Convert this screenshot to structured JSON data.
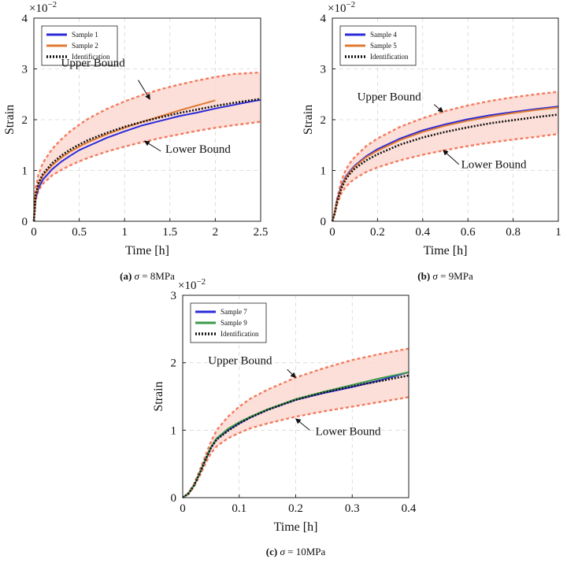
{
  "colors": {
    "band": "#fbd9d2",
    "bound": "#f47c5f",
    "identification": "#111111",
    "sample_blue": "#2b2bd9",
    "sample_orange": "#e07b33",
    "sample_green": "#3a9a4a"
  },
  "chart_data": [
    {
      "type": "line",
      "caption": {
        "tag": "(a)",
        "sym": "σ",
        "rest": " = 8MPa"
      },
      "multiplier": "×10",
      "exponent": "−2",
      "xlabel": "Time [h]",
      "ylabel": "Strain",
      "xlim": [
        0,
        2.5
      ],
      "ylim": [
        0,
        4
      ],
      "xticks": [
        0,
        0.5,
        1,
        1.5,
        2,
        2.5
      ],
      "xtick_labels": [
        "0",
        "0.5",
        "1",
        "1.5",
        "2",
        "2.5"
      ],
      "yticks": [
        0,
        1,
        2,
        3,
        4
      ],
      "ytick_labels": [
        "0",
        "1",
        "2",
        "3",
        "4"
      ],
      "grid": true,
      "legend": "top-left",
      "annotations": [
        {
          "text": "Upper Bound",
          "at": [
            0.3,
            3.05
          ],
          "arrow_to": [
            1.28,
            2.4
          ],
          "arrow_from": [
            1.15,
            2.78
          ]
        },
        {
          "text": "Lower Bound",
          "at": [
            1.45,
            1.35
          ],
          "arrow_to": [
            1.22,
            1.58
          ],
          "arrow_from": [
            1.4,
            1.38
          ]
        }
      ],
      "series": [
        {
          "name": "Sample 1",
          "color": "sample_blue",
          "style": "solid",
          "x": [
            0,
            0.02,
            0.05,
            0.1,
            0.2,
            0.3,
            0.4,
            0.5,
            0.6,
            0.8,
            1.0,
            1.2,
            1.4,
            1.6,
            1.8,
            2.0,
            2.2,
            2.4,
            2.5
          ],
          "y": [
            0,
            0.45,
            0.65,
            0.82,
            1.02,
            1.17,
            1.29,
            1.4,
            1.48,
            1.64,
            1.77,
            1.89,
            1.98,
            2.07,
            2.14,
            2.22,
            2.29,
            2.36,
            2.39
          ]
        },
        {
          "name": "Sample 2",
          "color": "sample_orange",
          "style": "solid",
          "x": [
            0,
            0.02,
            0.05,
            0.1,
            0.2,
            0.3,
            0.4,
            0.5,
            0.6,
            0.8,
            1.0,
            1.2,
            1.4,
            1.6,
            1.8,
            2.0
          ],
          "y": [
            0,
            0.5,
            0.72,
            0.9,
            1.1,
            1.25,
            1.37,
            1.47,
            1.56,
            1.71,
            1.84,
            1.96,
            2.07,
            2.18,
            2.28,
            2.38
          ]
        },
        {
          "name": "Identification",
          "color": "identification",
          "style": "dotted",
          "x": [
            0,
            0.02,
            0.05,
            0.1,
            0.2,
            0.3,
            0.4,
            0.5,
            0.6,
            0.8,
            1.0,
            1.2,
            1.4,
            1.6,
            1.8,
            2.0,
            2.2,
            2.5
          ],
          "y": [
            0,
            0.52,
            0.75,
            0.93,
            1.14,
            1.29,
            1.41,
            1.51,
            1.6,
            1.74,
            1.86,
            1.96,
            2.05,
            2.13,
            2.2,
            2.27,
            2.33,
            2.41
          ]
        },
        {
          "name": "Upper Bound",
          "color": "bound",
          "style": "bound",
          "x": [
            0,
            0.02,
            0.05,
            0.1,
            0.2,
            0.3,
            0.4,
            0.5,
            0.6,
            0.8,
            1.0,
            1.2,
            1.4,
            1.6,
            1.8,
            2.0,
            2.2,
            2.5
          ],
          "y": [
            0,
            0.65,
            0.92,
            1.15,
            1.42,
            1.61,
            1.77,
            1.9,
            2.02,
            2.21,
            2.36,
            2.49,
            2.6,
            2.69,
            2.77,
            2.84,
            2.9,
            2.93
          ]
        },
        {
          "name": "Lower Bound",
          "color": "bound",
          "style": "bound",
          "x": [
            0,
            0.02,
            0.05,
            0.1,
            0.2,
            0.3,
            0.4,
            0.5,
            0.6,
            0.8,
            1.0,
            1.2,
            1.4,
            1.6,
            1.8,
            2.0,
            2.2,
            2.5
          ],
          "y": [
            0,
            0.42,
            0.6,
            0.74,
            0.9,
            1.01,
            1.1,
            1.18,
            1.25,
            1.37,
            1.47,
            1.56,
            1.64,
            1.71,
            1.78,
            1.84,
            1.89,
            1.96
          ]
        }
      ]
    },
    {
      "type": "line",
      "caption": {
        "tag": "(b)",
        "sym": "σ",
        "rest": " = 9MPa"
      },
      "multiplier": "×10",
      "exponent": "−2",
      "xlabel": "Time [h]",
      "ylabel": "Strain",
      "xlim": [
        0,
        1
      ],
      "ylim": [
        0,
        4
      ],
      "xticks": [
        0,
        0.2,
        0.4,
        0.6,
        0.8,
        1
      ],
      "xtick_labels": [
        "0",
        "0.2",
        "0.4",
        "0.6",
        "0.8",
        "1"
      ],
      "yticks": [
        0,
        1,
        2,
        3,
        4
      ],
      "ytick_labels": [
        "0",
        "1",
        "2",
        "3",
        "4"
      ],
      "grid": true,
      "legend": "top-left",
      "annotations": [
        {
          "text": "Upper Bound",
          "at": [
            0.11,
            2.38
          ],
          "arrow_to": [
            0.49,
            2.15
          ],
          "arrow_from": [
            0.45,
            2.3
          ]
        },
        {
          "text": "Lower Bound",
          "at": [
            0.57,
            1.05
          ],
          "arrow_to": [
            0.49,
            1.4
          ],
          "arrow_from": [
            0.56,
            1.12
          ]
        }
      ],
      "series": [
        {
          "name": "Sample 4",
          "color": "sample_blue",
          "style": "solid",
          "x": [
            0,
            0.01,
            0.02,
            0.04,
            0.06,
            0.08,
            0.1,
            0.15,
            0.2,
            0.3,
            0.4,
            0.5,
            0.6,
            0.7,
            0.8,
            0.9,
            1.0
          ],
          "y": [
            0,
            0.15,
            0.4,
            0.7,
            0.88,
            1.0,
            1.1,
            1.28,
            1.42,
            1.63,
            1.79,
            1.91,
            2.01,
            2.09,
            2.15,
            2.21,
            2.26
          ]
        },
        {
          "name": "Sample 5",
          "color": "sample_orange",
          "style": "solid",
          "x": [
            0,
            0.01,
            0.02,
            0.04,
            0.06,
            0.08,
            0.1,
            0.15,
            0.2,
            0.3,
            0.4,
            0.5,
            0.6,
            0.7,
            0.8,
            0.9,
            1.0
          ],
          "y": [
            0,
            0.15,
            0.38,
            0.68,
            0.86,
            0.98,
            1.08,
            1.26,
            1.39,
            1.6,
            1.76,
            1.88,
            1.98,
            2.06,
            2.13,
            2.19,
            2.24
          ]
        },
        {
          "name": "Identification",
          "color": "identification",
          "style": "dotted",
          "x": [
            0,
            0.01,
            0.02,
            0.04,
            0.06,
            0.08,
            0.1,
            0.15,
            0.2,
            0.3,
            0.4,
            0.5,
            0.6,
            0.7,
            0.8,
            0.9,
            1.0
          ],
          "y": [
            0,
            0.15,
            0.36,
            0.65,
            0.83,
            0.95,
            1.04,
            1.2,
            1.32,
            1.51,
            1.65,
            1.76,
            1.85,
            1.93,
            1.99,
            2.05,
            2.1
          ]
        },
        {
          "name": "Upper Bound",
          "color": "bound",
          "style": "bound",
          "x": [
            0,
            0.01,
            0.02,
            0.04,
            0.06,
            0.08,
            0.1,
            0.15,
            0.2,
            0.3,
            0.4,
            0.5,
            0.6,
            0.7,
            0.8,
            0.9,
            1.0
          ],
          "y": [
            0,
            0.16,
            0.42,
            0.8,
            1.02,
            1.16,
            1.27,
            1.48,
            1.63,
            1.86,
            2.03,
            2.17,
            2.28,
            2.37,
            2.44,
            2.5,
            2.55
          ]
        },
        {
          "name": "Lower Bound",
          "color": "bound",
          "style": "bound",
          "x": [
            0,
            0.01,
            0.02,
            0.04,
            0.06,
            0.08,
            0.1,
            0.15,
            0.2,
            0.3,
            0.4,
            0.5,
            0.6,
            0.7,
            0.8,
            0.9,
            1.0
          ],
          "y": [
            0,
            0.14,
            0.32,
            0.55,
            0.68,
            0.77,
            0.84,
            0.97,
            1.06,
            1.2,
            1.31,
            1.4,
            1.48,
            1.55,
            1.61,
            1.66,
            1.72
          ]
        }
      ]
    },
    {
      "type": "line",
      "caption": {
        "tag": "(c)",
        "sym": "σ",
        "rest": " = 10MPa"
      },
      "multiplier": "×10",
      "exponent": "−2",
      "xlabel": "Time [h]",
      "ylabel": "Strain",
      "xlim": [
        0,
        0.4
      ],
      "ylim": [
        0,
        3
      ],
      "xticks": [
        0,
        0.1,
        0.2,
        0.3,
        0.4
      ],
      "xtick_labels": [
        "0",
        "0.1",
        "0.2",
        "0.3",
        "0.4"
      ],
      "yticks": [
        0,
        1,
        2,
        3
      ],
      "ytick_labels": [
        "0",
        "1",
        "2",
        "3"
      ],
      "grid": true,
      "legend": "top-left",
      "annotations": [
        {
          "text": "Upper Bound",
          "at": [
            0.045,
            1.98
          ],
          "arrow_to": [
            0.2,
            1.78
          ],
          "arrow_from": [
            0.185,
            1.9
          ]
        },
        {
          "text": "Lower Bound",
          "at": [
            0.235,
            0.93
          ],
          "arrow_to": [
            0.2,
            1.17
          ],
          "arrow_from": [
            0.225,
            1.0
          ]
        }
      ],
      "series": [
        {
          "name": "Sample 7",
          "color": "sample_blue",
          "style": "solid",
          "x": [
            0,
            0.01,
            0.02,
            0.03,
            0.04,
            0.05,
            0.06,
            0.08,
            0.1,
            0.12,
            0.15,
            0.2,
            0.25,
            0.3,
            0.35,
            0.4
          ],
          "y": [
            0,
            0.06,
            0.18,
            0.36,
            0.55,
            0.74,
            0.87,
            1.0,
            1.1,
            1.19,
            1.3,
            1.45,
            1.55,
            1.64,
            1.74,
            1.86
          ]
        },
        {
          "name": "Sample 9",
          "color": "sample_green",
          "style": "solid",
          "x": [
            0,
            0.01,
            0.02,
            0.03,
            0.04,
            0.05,
            0.06,
            0.08,
            0.1,
            0.12,
            0.15,
            0.2,
            0.25,
            0.3,
            0.35,
            0.4
          ],
          "y": [
            0,
            0.06,
            0.18,
            0.36,
            0.56,
            0.75,
            0.88,
            1.02,
            1.12,
            1.2,
            1.31,
            1.46,
            1.57,
            1.67,
            1.77,
            1.86
          ]
        },
        {
          "name": "Identification",
          "color": "identification",
          "style": "dotted",
          "x": [
            0,
            0.01,
            0.02,
            0.03,
            0.04,
            0.05,
            0.06,
            0.08,
            0.1,
            0.12,
            0.15,
            0.2,
            0.25,
            0.3,
            0.35,
            0.4
          ],
          "y": [
            0,
            0.06,
            0.18,
            0.36,
            0.56,
            0.74,
            0.86,
            0.99,
            1.1,
            1.19,
            1.3,
            1.45,
            1.56,
            1.65,
            1.73,
            1.81
          ]
        },
        {
          "name": "Upper Bound",
          "color": "bound",
          "style": "bound",
          "x": [
            0,
            0.01,
            0.02,
            0.03,
            0.04,
            0.05,
            0.06,
            0.08,
            0.1,
            0.12,
            0.15,
            0.2,
            0.25,
            0.3,
            0.35,
            0.4
          ],
          "y": [
            0,
            0.07,
            0.2,
            0.4,
            0.62,
            0.83,
            1.0,
            1.2,
            1.35,
            1.47,
            1.6,
            1.78,
            1.92,
            2.04,
            2.13,
            2.21
          ]
        },
        {
          "name": "Lower Bound",
          "color": "bound",
          "style": "bound",
          "x": [
            0,
            0.01,
            0.02,
            0.03,
            0.04,
            0.05,
            0.06,
            0.08,
            0.1,
            0.12,
            0.15,
            0.2,
            0.25,
            0.3,
            0.35,
            0.4
          ],
          "y": [
            0,
            0.05,
            0.16,
            0.32,
            0.5,
            0.66,
            0.76,
            0.88,
            0.96,
            1.03,
            1.1,
            1.2,
            1.28,
            1.35,
            1.42,
            1.49
          ]
        }
      ]
    }
  ]
}
